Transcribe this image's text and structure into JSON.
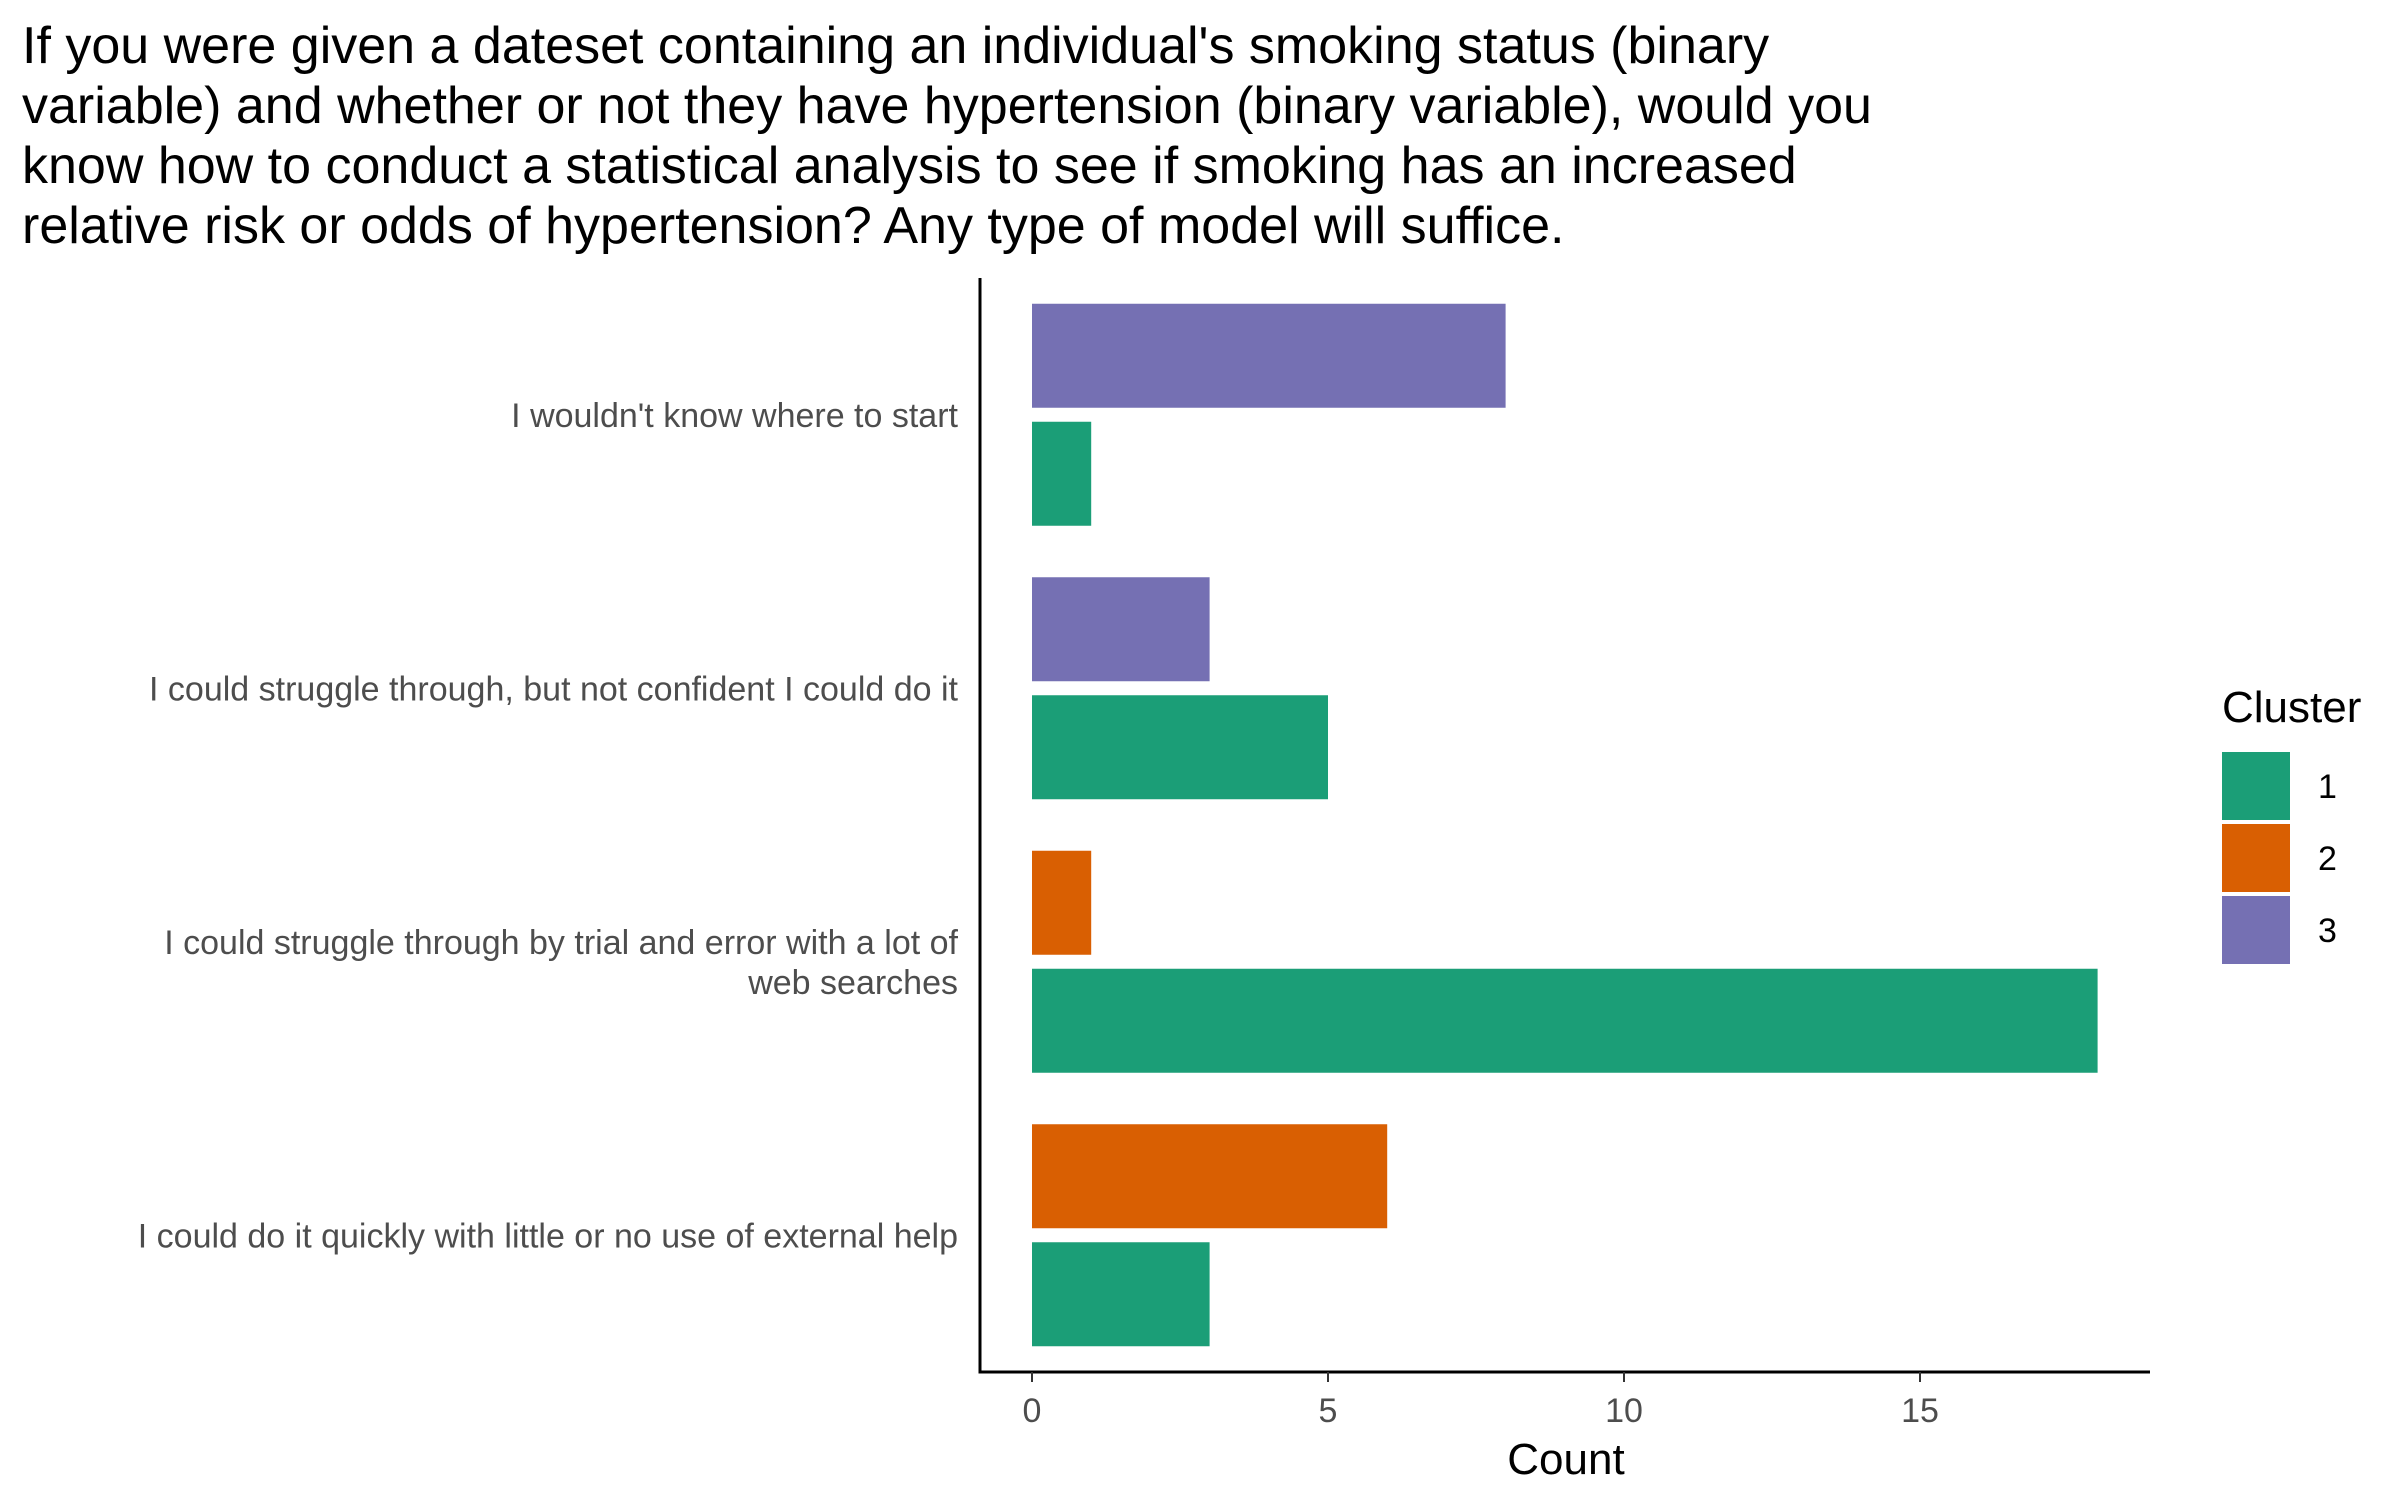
{
  "chart_data": {
    "type": "bar",
    "orientation": "horizontal",
    "title_lines": [
      "If you were given a dateset containing an individual's smoking status (binary",
      "variable) and whether or not they have hypertension (binary variable), would you",
      "know how to conduct a statistical analysis to see if smoking has an increased",
      "relative risk or odds of hypertension? Any type of model will suffice."
    ],
    "xlabel": "Count",
    "ylabel": "",
    "xlim": [
      0,
      19
    ],
    "xticks": [
      0,
      5,
      10,
      15
    ],
    "grid": false,
    "categories": [
      {
        "lines": [
          "I wouldn't know where to start"
        ],
        "bars": [
          {
            "cluster": "3",
            "value": 8
          },
          {
            "cluster": "1",
            "value": 1
          }
        ]
      },
      {
        "lines": [
          "I could struggle through, but not confident I could do it"
        ],
        "bars": [
          {
            "cluster": "3",
            "value": 3
          },
          {
            "cluster": "1",
            "value": 5
          }
        ]
      },
      {
        "lines": [
          "I could struggle through by trial and error with a lot of",
          "web searches"
        ],
        "bars": [
          {
            "cluster": "2",
            "value": 1
          },
          {
            "cluster": "1",
            "value": 18
          }
        ]
      },
      {
        "lines": [
          "I could do it quickly with little or no use of external help"
        ],
        "bars": [
          {
            "cluster": "2",
            "value": 6
          },
          {
            "cluster": "1",
            "value": 3
          }
        ]
      }
    ],
    "legend": {
      "title": "Cluster",
      "placement": "right",
      "items": [
        {
          "name": "1",
          "color": "#1b9e77"
        },
        {
          "name": "2",
          "color": "#d95f02"
        },
        {
          "name": "3",
          "color": "#7570b3"
        }
      ]
    }
  }
}
